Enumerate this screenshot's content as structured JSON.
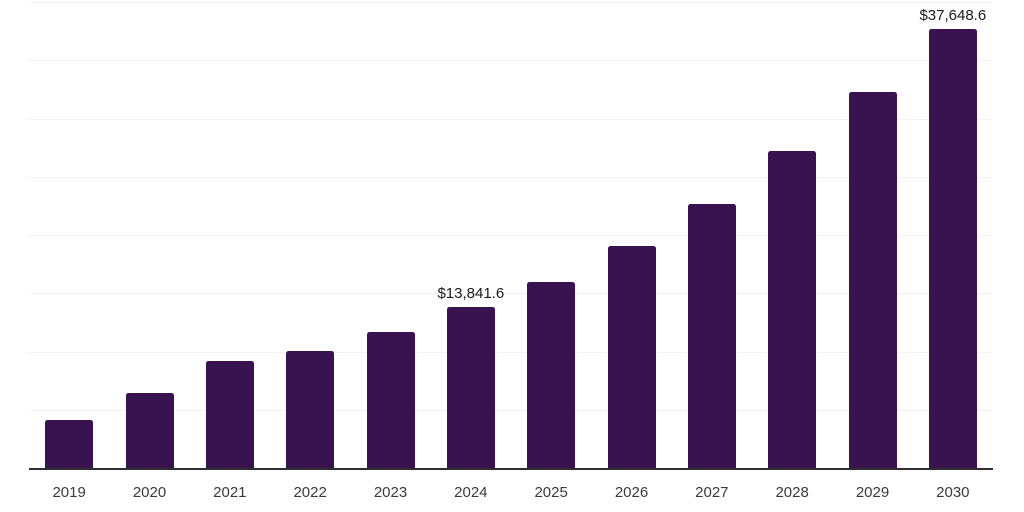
{
  "chart_data": {
    "type": "bar",
    "title": "",
    "xlabel": "",
    "ylabel": "",
    "categories": [
      "2019",
      "2020",
      "2021",
      "2022",
      "2023",
      "2024",
      "2025",
      "2026",
      "2027",
      "2028",
      "2029",
      "2030"
    ],
    "values": [
      4100,
      6400,
      9200,
      10050,
      11700,
      13841.6,
      16000,
      19100,
      22700,
      27200,
      32300,
      37648.6
    ],
    "data_labels": [
      {
        "index": 5,
        "text": "$13,841.6"
      },
      {
        "index": 11,
        "text": "$37,648.6"
      }
    ],
    "ylim": [
      0,
      40000
    ],
    "gridline_interval": 5000,
    "grid": true,
    "legend": "none",
    "colors": {
      "bar": "#391350",
      "gridline": "#f2f2f2",
      "axis_line": "#2e2e2e",
      "data_label_text": "#1a1a1a",
      "tick_label_text": "#3a3a3a",
      "background": "#ffffff"
    }
  }
}
